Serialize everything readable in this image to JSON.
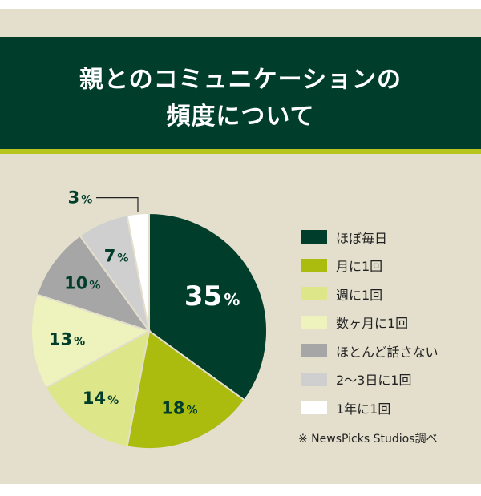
{
  "title_lines": [
    "親とのコミュニケーションの",
    "頻度について"
  ],
  "source": "※ NewsPicks Studios調べ",
  "colors": {
    "background": "#e3dfcc",
    "banner": "#003d2b",
    "accent_line": "#b7c41b"
  },
  "chart_data": {
    "type": "pie",
    "unit": "%",
    "slices": [
      {
        "label": "ほぼ毎日",
        "value": 35,
        "color": "#003d2b",
        "label_color": "#ffffff"
      },
      {
        "label": "月に1回",
        "value": 18,
        "color": "#acbc0e",
        "label_color": "#003d2b"
      },
      {
        "label": "週に1回",
        "value": 14,
        "color": "#dde78a",
        "label_color": "#003d2b"
      },
      {
        "label": "数ヶ月に1回",
        "value": 13,
        "color": "#eef3bd",
        "label_color": "#003d2b"
      },
      {
        "label": "ほとんど話さない",
        "value": 10,
        "color": "#a6a6a6",
        "label_color": "#003d2b"
      },
      {
        "label": "2〜3日に1回",
        "value": 7,
        "color": "#cfcfcf",
        "label_color": "#003d2b"
      },
      {
        "label": "1年に1回",
        "value": 3,
        "color": "#ffffff",
        "label_color": "#003d2b",
        "label_outside": true
      }
    ],
    "legend_position": "right",
    "start_angle": "top",
    "direction": "clockwise"
  }
}
